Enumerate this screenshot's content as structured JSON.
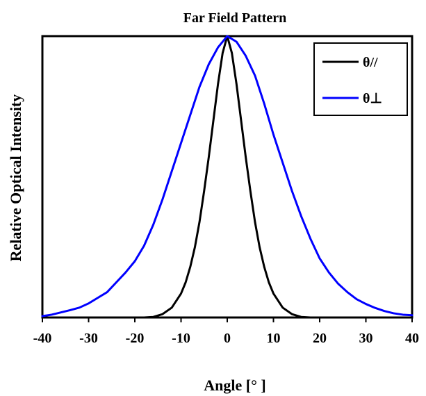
{
  "chart_data": {
    "type": "line",
    "title": "Far Field Pattern",
    "xlabel": "Angle [° ]",
    "ylabel": "Relative Optical Intensity",
    "xlim": [
      -40,
      40
    ],
    "ylim": [
      0,
      1
    ],
    "x_ticks": [
      -40,
      -30,
      -20,
      -10,
      0,
      10,
      20,
      30,
      40
    ],
    "y_tick_labels_shown": false,
    "grid": false,
    "legend_position": "top-right",
    "series": [
      {
        "name": "θ//",
        "color": "#000000",
        "x": [
          -40,
          -20,
          -18,
          -16,
          -14,
          -12,
          -10,
          -9,
          -8,
          -7,
          -6,
          -5,
          -4,
          -3,
          -2,
          -1,
          0,
          1,
          2,
          3,
          4,
          5,
          6,
          7,
          8,
          9,
          10,
          12,
          14,
          16,
          18,
          20,
          40
        ],
        "y": [
          0,
          0,
          0,
          0.002,
          0.012,
          0.035,
          0.085,
          0.125,
          0.18,
          0.25,
          0.34,
          0.45,
          0.57,
          0.7,
          0.83,
          0.94,
          1.0,
          0.94,
          0.83,
          0.7,
          0.57,
          0.45,
          0.34,
          0.25,
          0.18,
          0.125,
          0.085,
          0.035,
          0.012,
          0.002,
          0,
          0,
          0
        ]
      },
      {
        "name": "θ⊥",
        "color": "#0000ff",
        "x": [
          -40,
          -38,
          -36,
          -34,
          -32,
          -30,
          -28,
          -26,
          -24,
          -22,
          -21,
          -20,
          -18,
          -16,
          -14,
          -12,
          -10,
          -8,
          -6,
          -4,
          -2,
          0,
          2,
          4,
          6,
          8,
          10,
          12,
          14,
          16,
          18,
          20,
          22,
          24,
          26,
          28,
          30,
          32,
          34,
          36,
          38,
          40
        ],
        "y": [
          0.005,
          0.01,
          0.018,
          0.026,
          0.035,
          0.05,
          0.07,
          0.09,
          0.125,
          0.16,
          0.18,
          0.2,
          0.255,
          0.33,
          0.42,
          0.52,
          0.62,
          0.72,
          0.82,
          0.9,
          0.96,
          1.0,
          0.98,
          0.93,
          0.86,
          0.76,
          0.65,
          0.55,
          0.45,
          0.36,
          0.28,
          0.21,
          0.16,
          0.12,
          0.09,
          0.065,
          0.048,
          0.034,
          0.023,
          0.015,
          0.01,
          0.008
        ]
      }
    ]
  }
}
